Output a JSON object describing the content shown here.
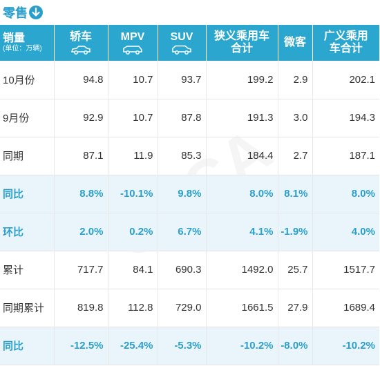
{
  "title": "零售",
  "watermark": "CPCA",
  "header": {
    "first_main": "销量",
    "first_sub": "(单位：万辆)",
    "cols": [
      {
        "label": "轿车",
        "icon": "sedan-icon"
      },
      {
        "label": "MPV",
        "icon": "mpv-icon"
      },
      {
        "label": "SUV",
        "icon": "suv-icon"
      },
      {
        "label": "狭义乘用车合计",
        "icon": ""
      },
      {
        "label": "微客",
        "icon": ""
      },
      {
        "label": "广义乘用车合计",
        "icon": ""
      }
    ]
  },
  "rows": [
    {
      "label": "10月份",
      "values": [
        "94.8",
        "10.7",
        "93.7",
        "199.2",
        "2.9",
        "202.1"
      ],
      "highlight": false
    },
    {
      "label": "9月份",
      "values": [
        "92.9",
        "10.7",
        "87.8",
        "191.3",
        "3.0",
        "194.3"
      ],
      "highlight": false
    },
    {
      "label": "同期",
      "values": [
        "87.1",
        "11.9",
        "85.3",
        "184.4",
        "2.7",
        "187.1"
      ],
      "highlight": false
    },
    {
      "label": "同比",
      "values": [
        "8.8%",
        "-10.1%",
        "9.8%",
        "8.0%",
        "8.1%",
        "8.0%"
      ],
      "highlight": true
    },
    {
      "label": "环比",
      "values": [
        "2.0%",
        "0.2%",
        "6.7%",
        "4.1%",
        "-1.9%",
        "4.0%"
      ],
      "highlight": true
    },
    {
      "label": "累计",
      "values": [
        "717.7",
        "84.1",
        "690.3",
        "1492.0",
        "25.7",
        "1517.7"
      ],
      "highlight": false
    },
    {
      "label": "同期累计",
      "values": [
        "819.8",
        "112.8",
        "729.0",
        "1661.5",
        "27.9",
        "1689.4"
      ],
      "highlight": false
    },
    {
      "label": "同比",
      "values": [
        "-12.5%",
        "-25.4%",
        "-5.3%",
        "-10.2%",
        "-8.0%",
        "-10.2%"
      ],
      "highlight": true
    }
  ],
  "colors": {
    "accent": "#2aa6cf",
    "highlight_row": "#eaf5fb"
  }
}
